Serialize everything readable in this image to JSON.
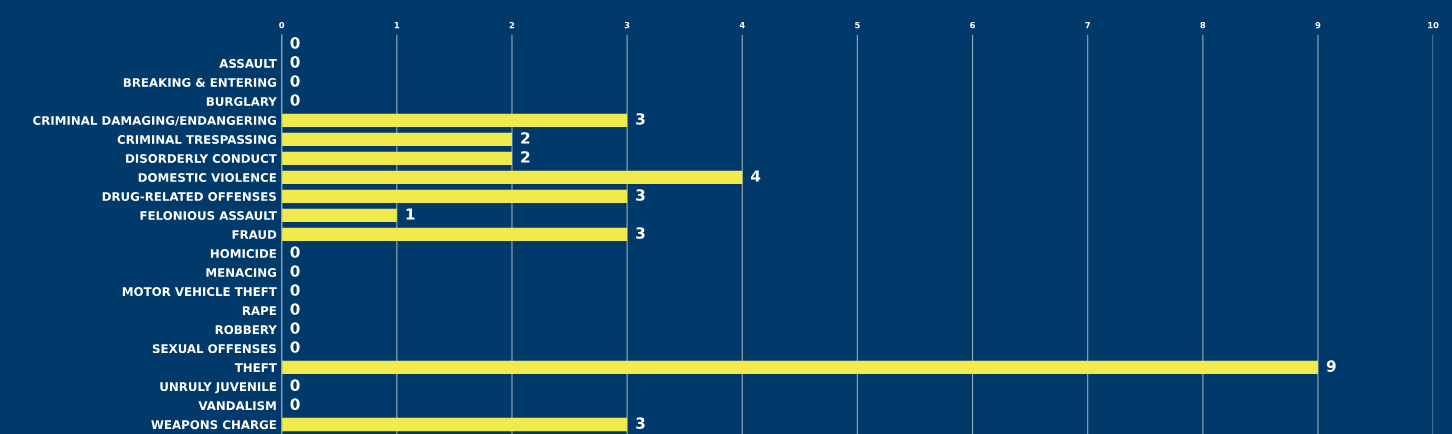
{
  "chart_data": {
    "type": "bar",
    "orientation": "horizontal",
    "categories": [
      null,
      "ASSAULT",
      "BREAKING & ENTERING",
      "BURGLARY",
      "CRIMINAL DAMAGING/ENDANGERING",
      "CRIMINAL TRESPASSING",
      "DISORDERLY CONDUCT",
      "DOMESTIC VIOLENCE",
      "DRUG-RELATED OFFENSES",
      "FELONIOUS ASSAULT",
      "FRAUD",
      "HOMICIDE",
      "MENACING",
      "MOTOR VEHICLE THEFT",
      "RAPE",
      "ROBBERY",
      "SEXUAL OFFENSES",
      "THEFT",
      "UNRULY JUVENILE",
      "VANDALISM",
      "WEAPONS CHARGE"
    ],
    "values": [
      0,
      0,
      0,
      0,
      3,
      2,
      2,
      4,
      3,
      1,
      3,
      0,
      0,
      0,
      0,
      0,
      0,
      9,
      0,
      0,
      3
    ],
    "color": "#f2ea4c",
    "xlim": [
      0,
      10
    ],
    "xticks": [
      0,
      1,
      2,
      3,
      4,
      5,
      6,
      7,
      8,
      9,
      10
    ],
    "grid": "x",
    "data_labels": true
  }
}
